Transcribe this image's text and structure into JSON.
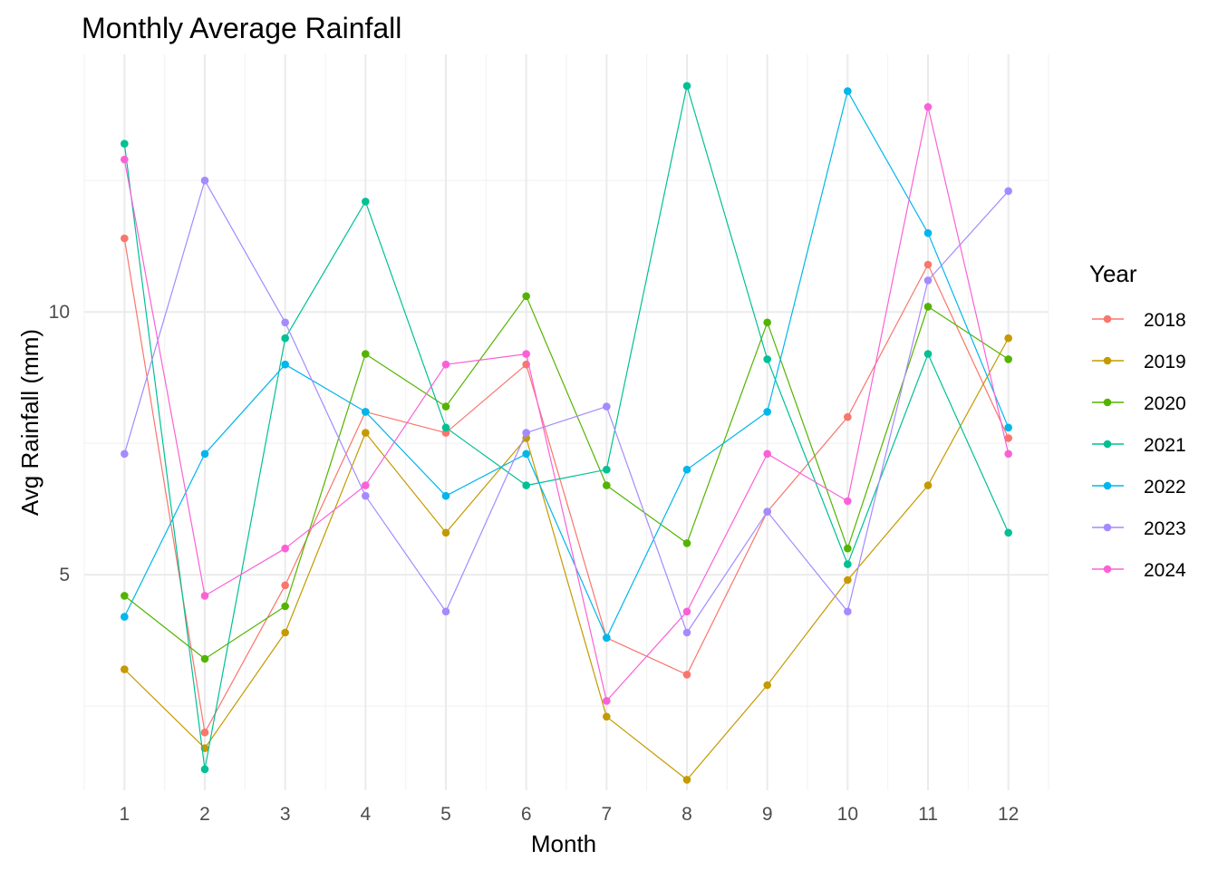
{
  "chart_data": {
    "type": "line",
    "title": "Monthly Average Rainfall",
    "xlabel": "Month",
    "ylabel": "Avg Rainfall (mm)",
    "x": [
      1,
      2,
      3,
      4,
      5,
      6,
      7,
      8,
      9,
      10,
      11,
      12
    ],
    "x_ticks": [
      "1",
      "2",
      "3",
      "4",
      "5",
      "6",
      "7",
      "8",
      "9",
      "10",
      "11",
      "12"
    ],
    "y_ticks": [
      "5",
      "10"
    ],
    "y_tick_values": [
      5,
      10
    ],
    "xlim": [
      0.5,
      12.5
    ],
    "ylim": [
      0.9,
      14.9
    ],
    "grid": true,
    "legend_title": "Year",
    "legend_position": "right",
    "series": [
      {
        "name": "2018",
        "color": "#F8766D",
        "values": [
          11.4,
          2.0,
          4.8,
          8.1,
          7.7,
          9.0,
          3.8,
          3.1,
          6.2,
          8.0,
          10.9,
          7.6
        ]
      },
      {
        "name": "2019",
        "color": "#C49A00",
        "values": [
          3.2,
          1.7,
          3.9,
          7.7,
          5.8,
          7.6,
          2.3,
          1.1,
          2.9,
          4.9,
          6.7,
          9.5
        ]
      },
      {
        "name": "2020",
        "color": "#53B400",
        "values": [
          4.6,
          3.4,
          4.4,
          9.2,
          8.2,
          10.3,
          6.7,
          5.6,
          9.8,
          5.5,
          10.1,
          9.1
        ]
      },
      {
        "name": "2021",
        "color": "#00C094",
        "values": [
          13.2,
          1.3,
          9.5,
          12.1,
          7.8,
          6.7,
          7.0,
          14.3,
          9.1,
          5.2,
          9.2,
          5.8
        ]
      },
      {
        "name": "2022",
        "color": "#00B6EB",
        "values": [
          4.2,
          7.3,
          9.0,
          8.1,
          6.5,
          7.3,
          3.8,
          7.0,
          8.1,
          14.2,
          11.5,
          7.8
        ]
      },
      {
        "name": "2023",
        "color": "#A58AFF",
        "values": [
          7.3,
          12.5,
          9.8,
          6.5,
          4.3,
          7.7,
          8.2,
          3.9,
          6.2,
          4.3,
          10.6,
          12.3
        ]
      },
      {
        "name": "2024",
        "color": "#FB61D7",
        "values": [
          12.9,
          4.6,
          5.5,
          6.7,
          9.0,
          9.2,
          2.6,
          4.3,
          7.3,
          6.4,
          13.9,
          7.3
        ]
      }
    ]
  }
}
